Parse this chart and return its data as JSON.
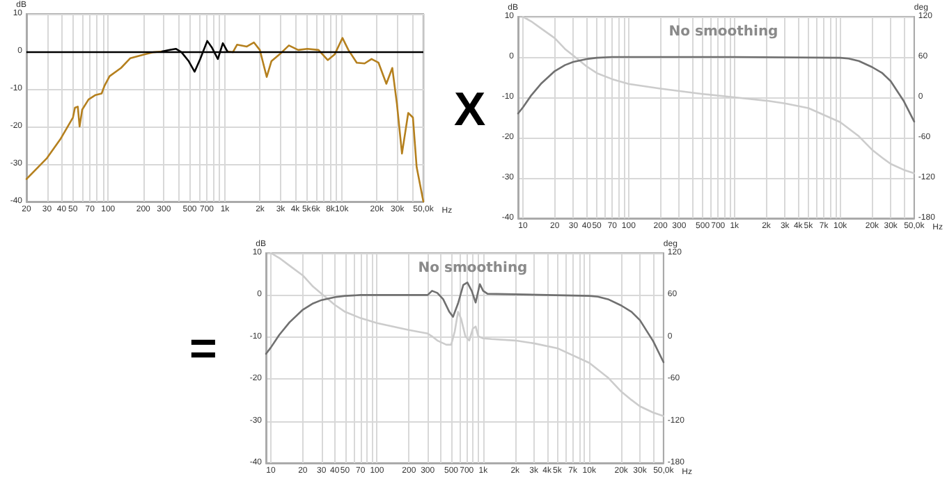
{
  "chart_data": [
    {
      "type": "line",
      "ylabel": "dB",
      "xlabel": "Hz",
      "log": "x",
      "grid": true,
      "xlim": [
        20,
        50000
      ],
      "ylim": [
        -40,
        10
      ],
      "yticks": [
        10,
        0,
        -10,
        -20,
        -30,
        -40
      ],
      "xticks": [
        20,
        30,
        40,
        50,
        {
          "value": 60,
          "label": null
        },
        70,
        {
          "value": 80,
          "label": null
        },
        {
          "value": 90,
          "label": null
        },
        100,
        200,
        300,
        {
          "value": 400,
          "label": null
        },
        500,
        {
          "value": 600,
          "label": null
        },
        700,
        {
          "value": 800,
          "label": null
        },
        {
          "value": 900,
          "label": null
        },
        {
          "value": 1000,
          "label": "1k"
        },
        {
          "value": 2000,
          "label": "2k"
        },
        {
          "value": 3000,
          "label": "3k"
        },
        {
          "value": 4000,
          "label": "4k"
        },
        {
          "value": 5000,
          "label": "5k"
        },
        {
          "value": 6000,
          "label": "6k"
        },
        {
          "value": 7000,
          "label": null
        },
        {
          "value": 8000,
          "label": "8k"
        },
        {
          "value": 9000,
          "label": null
        },
        {
          "value": 10000,
          "label": "10k"
        },
        {
          "value": 20000,
          "label": "20k"
        },
        {
          "value": 30000,
          "label": "30k"
        },
        {
          "value": 40000,
          "label": null
        },
        {
          "value": 50000,
          "label": "50,0k"
        }
      ],
      "ref_lines": [
        {
          "axis": "y",
          "value": 0,
          "color": "#000000"
        }
      ],
      "series": [
        {
          "color": "#b5801e",
          "x": [
            20,
            30,
            39,
            50,
            52,
            55,
            57,
            60,
            68,
            78,
            88,
            93,
            103,
            129,
            155,
            205,
            245,
            290,
            337,
            380,
            425,
            490,
            550,
            615,
            706,
            775,
            870,
            960,
            1050,
            1170,
            1270,
            1540,
            1770,
            1990,
            2280,
            2500,
            2930,
            3530,
            4240,
            5080,
            6330,
            7590,
            8700,
            10150,
            11410,
            13450,
            15700,
            18000,
            20650,
            24100,
            27100,
            29700,
            32800,
            37100,
            40700,
            43800,
            50000
          ],
          "values": [
            -34,
            -28.4,
            -23.4,
            -17.6,
            -15,
            -14.7,
            -20,
            -15.5,
            -12.8,
            -11.6,
            -11.2,
            -9.2,
            -6.6,
            -4.4,
            -1.8,
            -0.8,
            -0.2,
            0,
            null,
            null,
            null,
            null,
            null,
            null,
            null,
            null,
            null,
            null,
            0,
            -0.2,
            1.8,
            1.3,
            2.4,
            0.4,
            -6.8,
            -2.6,
            -0.8,
            1.6,
            0.4,
            0.7,
            0.4,
            -2.3,
            -0.8,
            3.6,
            0.4,
            -3,
            -3.2,
            -2,
            -3,
            -8.6,
            -4.4,
            -14,
            -27.2,
            -16.4,
            -17.6,
            -30.8,
            -40
          ]
        },
        {
          "color": "#000000",
          "x": [
            290,
            337,
            380,
            425,
            490,
            550,
            615,
            706,
            775,
            870,
            960,
            1050
          ],
          "values": [
            0,
            0.4,
            0.7,
            -0.2,
            -2.6,
            -5.4,
            -2,
            2.8,
            1,
            -2,
            2.2,
            0
          ]
        }
      ]
    },
    {
      "type": "line",
      "title": "No smoothing",
      "ylabel": "dB",
      "y2label": "deg",
      "xlabel": "Hz",
      "log": "x",
      "grid": true,
      "annotations": [
        "X"
      ],
      "xlim": [
        9,
        50000
      ],
      "ylim": [
        -40,
        10
      ],
      "yticks": [
        10,
        0,
        -10,
        -20,
        -30,
        -40
      ],
      "y2lim": [
        -180,
        120
      ],
      "y2ticks": [
        120,
        60,
        0,
        -60,
        -120,
        -180
      ],
      "xticks": [
        10,
        20,
        30,
        40,
        50,
        {
          "value": 60,
          "label": null
        },
        70,
        {
          "value": 80,
          "label": null
        },
        {
          "value": 90,
          "label": null
        },
        100,
        200,
        300,
        {
          "value": 400,
          "label": null
        },
        500,
        {
          "value": 600,
          "label": null
        },
        700,
        {
          "value": 800,
          "label": null
        },
        {
          "value": 900,
          "label": null
        },
        {
          "value": 1000,
          "label": "1k"
        },
        {
          "value": 2000,
          "label": "2k"
        },
        {
          "value": 3000,
          "label": "3k"
        },
        {
          "value": 4000,
          "label": "4k"
        },
        {
          "value": 5000,
          "label": "5k"
        },
        {
          "value": 6000,
          "label": null
        },
        {
          "value": 7000,
          "label": "7k"
        },
        {
          "value": 8000,
          "label": null
        },
        {
          "value": 9000,
          "label": null
        },
        {
          "value": 10000,
          "label": "10k"
        },
        {
          "value": 20000,
          "label": "20k"
        },
        {
          "value": 30000,
          "label": "30k"
        },
        {
          "value": 40000,
          "label": null
        },
        {
          "value": 50000,
          "label": "50,0k"
        }
      ],
      "series": [
        {
          "color": "#707070",
          "x": [
            9,
            10,
            12,
            15,
            20,
            25,
            30,
            40,
            50,
            70,
            100,
            1000,
            10000,
            12000,
            15000,
            20000,
            25000,
            30000,
            40000,
            50000
          ],
          "values": [
            -14,
            -12.5,
            -9.5,
            -6.5,
            -3.5,
            -2,
            -1.2,
            -0.5,
            -0.2,
            0,
            0,
            0,
            -0.2,
            -0.4,
            -1,
            -2.5,
            -4,
            -6,
            -11,
            -16
          ]
        },
        {
          "color": "#cccccc",
          "axis": "y2",
          "x": [
            10,
            12,
            15,
            20,
            25,
            30,
            40,
            50,
            70,
            100,
            200,
            500,
            1000,
            2000,
            3000,
            5000,
            10000,
            15000,
            20000,
            25000,
            30000,
            40000,
            50000
          ],
          "values": [
            120,
            113,
            102,
            88,
            72,
            62,
            46,
            36,
            27,
            20,
            13,
            5,
            0,
            -5,
            -9,
            -16,
            -37,
            -58,
            -78,
            -90,
            -99,
            -108,
            -113
          ]
        }
      ]
    },
    {
      "type": "line",
      "title": "No smoothing",
      "ylabel": "dB",
      "y2label": "deg",
      "xlabel": "Hz",
      "log": "x",
      "grid": true,
      "annotations": [
        "="
      ],
      "xlim": [
        9,
        50000
      ],
      "ylim": [
        -40,
        10
      ],
      "yticks": [
        10,
        0,
        -10,
        -20,
        -30,
        -40
      ],
      "y2lim": [
        -180,
        120
      ],
      "y2ticks": [
        120,
        60,
        0,
        -60,
        -120,
        -180
      ],
      "xticks": [
        10,
        20,
        30,
        40,
        50,
        {
          "value": 60,
          "label": null
        },
        70,
        {
          "value": 80,
          "label": null
        },
        {
          "value": 90,
          "label": null
        },
        100,
        200,
        300,
        {
          "value": 400,
          "label": null
        },
        500,
        {
          "value": 600,
          "label": null
        },
        700,
        {
          "value": 800,
          "label": null
        },
        {
          "value": 900,
          "label": null
        },
        {
          "value": 1000,
          "label": "1k"
        },
        {
          "value": 2000,
          "label": "2k"
        },
        {
          "value": 3000,
          "label": "3k"
        },
        {
          "value": 4000,
          "label": "4k"
        },
        {
          "value": 5000,
          "label": "5k"
        },
        {
          "value": 6000,
          "label": null
        },
        {
          "value": 7000,
          "label": "7k"
        },
        {
          "value": 8000,
          "label": null
        },
        {
          "value": 9000,
          "label": null
        },
        {
          "value": 10000,
          "label": "10k"
        },
        {
          "value": 20000,
          "label": "20k"
        },
        {
          "value": 30000,
          "label": "30k"
        },
        {
          "value": 40000,
          "label": null
        },
        {
          "value": 50000,
          "label": "50,0k"
        }
      ],
      "series": [
        {
          "color": "#707070",
          "x": [
            9,
            10,
            12,
            15,
            20,
            25,
            30,
            40,
            50,
            70,
            100,
            300,
            330,
            370,
            420,
            480,
            520,
            580,
            650,
            710,
            780,
            850,
            930,
            1000,
            1100,
            10000,
            12000,
            15000,
            20000,
            25000,
            30000,
            40000,
            50000
          ],
          "values": [
            -14,
            -12.5,
            -9.5,
            -6.5,
            -3.5,
            -2,
            -1.2,
            -0.5,
            -0.2,
            0,
            0,
            0,
            1,
            0.5,
            -1,
            -4,
            -5.2,
            -2,
            2.4,
            3,
            1,
            -1.8,
            2.6,
            1,
            0.3,
            -0.2,
            -0.4,
            -1,
            -2.5,
            -4,
            -6,
            -11,
            -16
          ]
        },
        {
          "color": "#cccccc",
          "axis": "y2",
          "x": [
            10,
            12,
            15,
            20,
            25,
            30,
            40,
            50,
            70,
            100,
            200,
            300,
            330,
            370,
            450,
            500,
            540,
            580,
            620,
            680,
            740,
            800,
            850,
            900,
            1000,
            1200,
            2000,
            3000,
            5000,
            10000,
            15000,
            20000,
            25000,
            30000,
            40000,
            50000
          ],
          "values": [
            120,
            113,
            102,
            88,
            72,
            62,
            46,
            36,
            27,
            20,
            10,
            5,
            1,
            -5,
            -11,
            -11,
            8,
            36,
            26,
            1,
            -5,
            12,
            15,
            1,
            -2,
            -3,
            -5,
            -9,
            -16,
            -37,
            -58,
            -78,
            -90,
            -99,
            -108,
            -113
          ]
        }
      ]
    }
  ]
}
